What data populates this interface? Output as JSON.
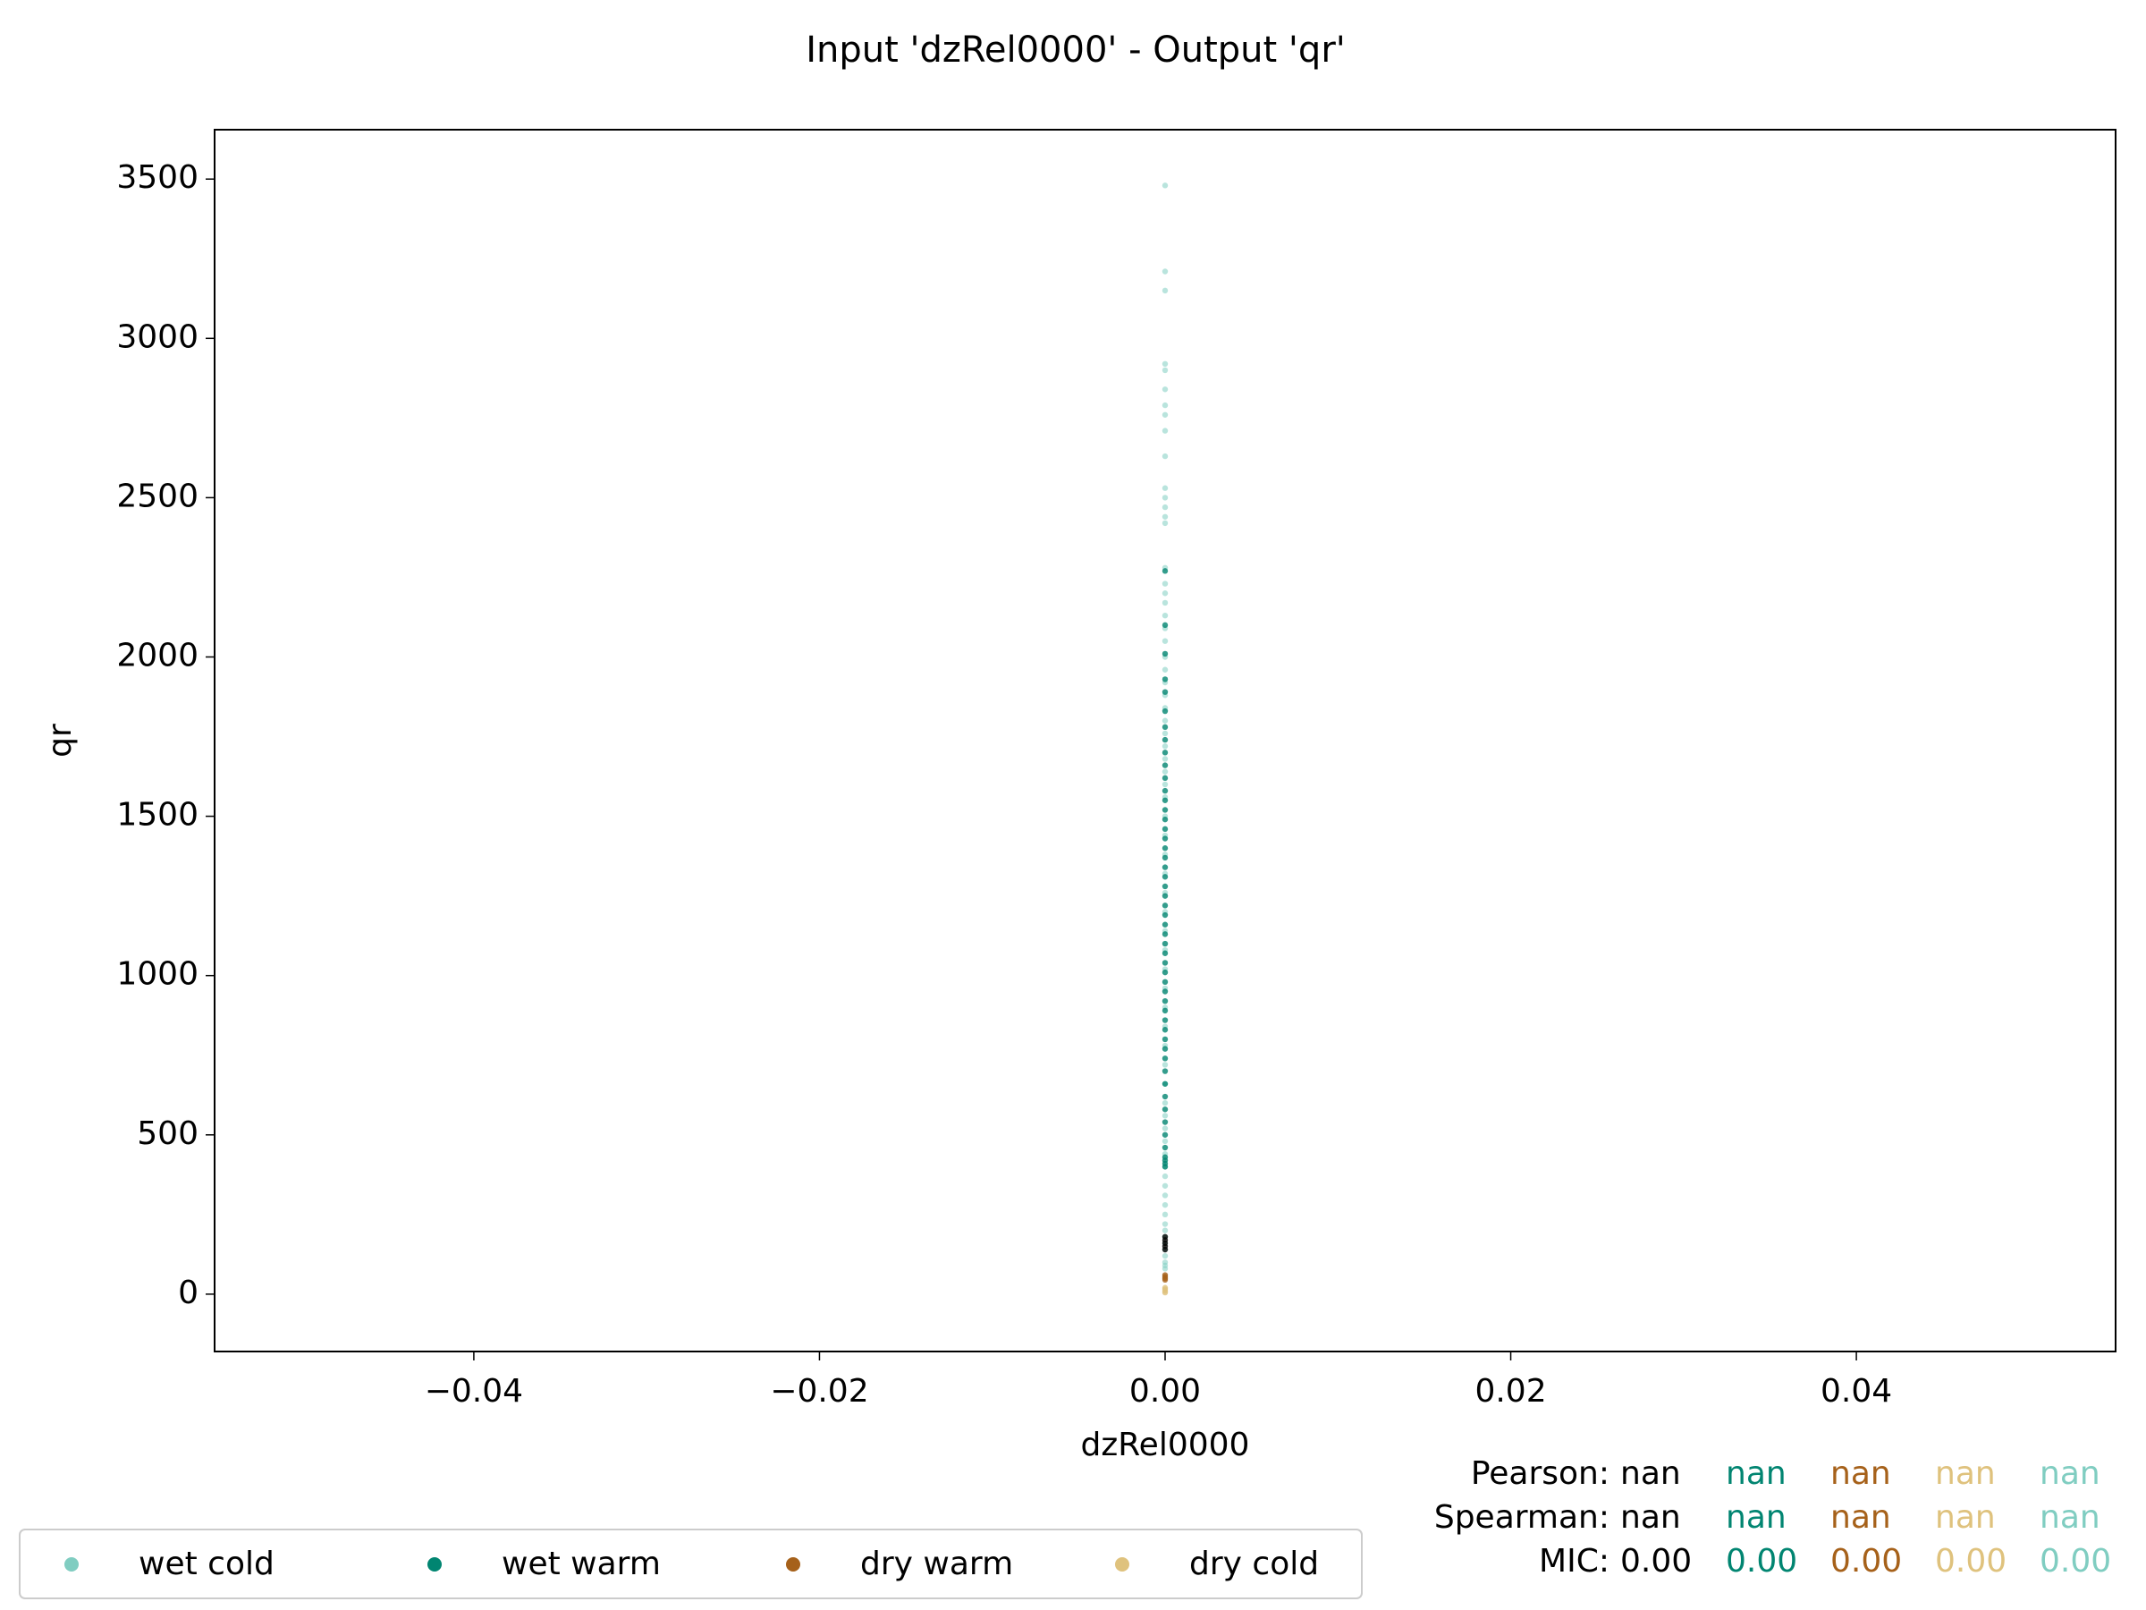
{
  "chart_data": {
    "type": "scatter",
    "title": "Input 'dzRel0000' - Output 'qr'",
    "x_label": "dzRel0000",
    "y_label": "qr",
    "xlim": [
      -0.055,
      0.055
    ],
    "ylim": [
      -180,
      3655
    ],
    "xticks": [
      {
        "value": -0.04,
        "label": "−0.04"
      },
      {
        "value": -0.02,
        "label": "−0.02"
      },
      {
        "value": 0,
        "label": "0.00"
      },
      0.02,
      0.04
    ],
    "yticks": [
      0,
      500,
      1000,
      1500,
      2000,
      2500,
      3000,
      3500
    ],
    "grid": false,
    "legend": "lower left",
    "series": [
      {
        "name": "wet cold",
        "color": "#80cdc1",
        "x": [
          0,
          0,
          0,
          0,
          0,
          0,
          0,
          0,
          0,
          0,
          0,
          0,
          0,
          0,
          0,
          0,
          0,
          0,
          0,
          0,
          0,
          0,
          0,
          0,
          0,
          0,
          0,
          0,
          0,
          0,
          0,
          0,
          0,
          0,
          0,
          0,
          0,
          0,
          0,
          0,
          0,
          0,
          0,
          0,
          0,
          0,
          0,
          0,
          0,
          0,
          0,
          0,
          0,
          0,
          0,
          0,
          0,
          0,
          0,
          0,
          0,
          0,
          0,
          0,
          0,
          0,
          0,
          0,
          0
        ],
        "values": [
          3480,
          3210,
          3150,
          2920,
          2900,
          2840,
          2790,
          2760,
          2710,
          2630,
          2530,
          2500,
          2470,
          2440,
          2420,
          2280,
          2230,
          2200,
          2170,
          2130,
          2090,
          2050,
          2000,
          1960,
          1920,
          1880,
          1840,
          1800,
          1760,
          1720,
          1680,
          1640,
          1600,
          1560,
          1500,
          1440,
          1380,
          1320,
          1260,
          1200,
          1140,
          1080,
          1020,
          960,
          900,
          840,
          780,
          720,
          660,
          600,
          560,
          520,
          480,
          440,
          400,
          370,
          340,
          310,
          280,
          250,
          220,
          200,
          180,
          160,
          140,
          120,
          100,
          90,
          80
        ]
      },
      {
        "name": "wet warm",
        "color": "#018571",
        "x": [
          0,
          0,
          0,
          0,
          0,
          0,
          0,
          0,
          0,
          0,
          0,
          0,
          0,
          0,
          0,
          0,
          0,
          0,
          0,
          0,
          0,
          0,
          0,
          0,
          0,
          0,
          0,
          0,
          0,
          0,
          0,
          0,
          0,
          0,
          0,
          0,
          0,
          0,
          0,
          0,
          0,
          0,
          0,
          0,
          0,
          0,
          0,
          0,
          0,
          0,
          0
        ],
        "values": [
          2270,
          2100,
          2010,
          1930,
          1890,
          1830,
          1780,
          1740,
          1700,
          1660,
          1620,
          1580,
          1550,
          1520,
          1490,
          1460,
          1430,
          1400,
          1370,
          1340,
          1310,
          1280,
          1250,
          1220,
          1190,
          1160,
          1130,
          1100,
          1070,
          1040,
          1010,
          980,
          950,
          920,
          890,
          860,
          830,
          800,
          770,
          740,
          700,
          660,
          620,
          580,
          540,
          500,
          460,
          430,
          420,
          410,
          400
        ]
      },
      {
        "name": "dry warm",
        "color": "#a6611a",
        "x": [
          0,
          0,
          0,
          0
        ],
        "values": [
          60,
          55,
          50,
          45
        ]
      },
      {
        "name": "dry cold",
        "color": "#dfc27d",
        "x": [
          0,
          0,
          0,
          0
        ],
        "values": [
          20,
          15,
          10,
          5
        ]
      },
      {
        "color": "#000000",
        "x": [
          0,
          0,
          0,
          0,
          0
        ],
        "values": [
          180,
          170,
          160,
          150,
          140
        ]
      }
    ],
    "stats": {
      "colors": [
        "#000000",
        "#018571",
        "#a6611a",
        "#dfc27d",
        "#80cdc1"
      ],
      "rows": [
        {
          "label": "Pearson:",
          "values": [
            "nan",
            "nan",
            "nan",
            "nan",
            "nan"
          ]
        },
        {
          "label": "Spearman:",
          "values": [
            "nan",
            "nan",
            "nan",
            "nan",
            "nan"
          ]
        },
        {
          "label": "MIC:",
          "values": [
            "0.00",
            "0.00",
            "0.00",
            "0.00",
            "0.00"
          ]
        }
      ]
    }
  }
}
